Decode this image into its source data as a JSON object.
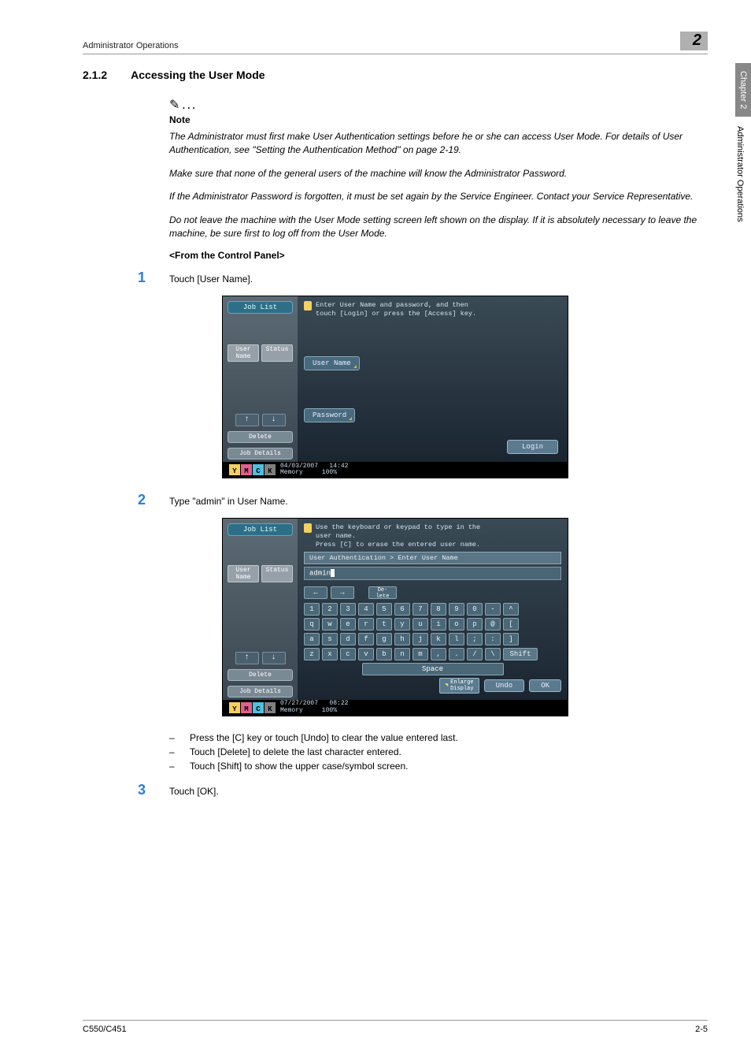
{
  "running_head": "Administrator Operations",
  "chapter_badge": "2",
  "side_tab": "Chapter 2",
  "side_text": "Administrator Operations",
  "section": {
    "num": "2.1.2",
    "title": "Accessing the User Mode"
  },
  "note": {
    "label": "Note",
    "p1": "The Administrator must first make User Authentication settings before he or she can access User Mode. For details of User Authentication, see \"Setting the Authentication Method\" on page 2-19.",
    "p2": "Make sure that none of the general users of the machine will know the Administrator Password.",
    "p3": "If the Administrator Password is forgotten, it must be set again by the Service Engineer. Contact your Service Representative.",
    "p4": "Do not leave the machine with the User Mode setting screen left shown on the display. If it is absolutely necessary to leave the machine, be sure first to log off from the User Mode."
  },
  "from_cp": "<From the Control Panel>",
  "steps": {
    "s1": "Touch [User Name].",
    "s2": "Type \"admin\" in User Name.",
    "s3": "Touch [OK]."
  },
  "bullets": {
    "b1": "Press the [C] key or touch [Undo] to clear the value entered last.",
    "b2": "Touch [Delete] to delete the last character entered.",
    "b3": "Touch [Shift] to show the upper case/symbol screen."
  },
  "panel1": {
    "job_list": "Job List",
    "user_name_tab": "User\nName",
    "status_tab": "Status",
    "up": "↑",
    "down": "↓",
    "delete": "Delete",
    "job_details": "Job Details",
    "guide1": "Enter User Name and password, and then",
    "guide2": "touch [Login] or press the [Access] key.",
    "user_name_btn": "User Name",
    "password_btn": "Password",
    "login": "Login",
    "date": "04/03/2007",
    "time": "14:42",
    "memory_lbl": "Memory",
    "memory_val": "100%"
  },
  "panel2": {
    "job_list": "Job List",
    "user_name_tab": "User\nName",
    "status_tab": "Status",
    "up": "↑",
    "down": "↓",
    "delete": "Delete",
    "job_details": "Job Details",
    "guide1": "Use the keyboard or keypad to type in the",
    "guide2": "user name.",
    "guide3": "Press [C] to erase the entered user name.",
    "breadcrumb": "User Authentication > Enter User Name",
    "input_value": "admin",
    "left_arrow": "←",
    "right_arrow": "→",
    "del_label": "De-\nlete",
    "row_num": [
      "1",
      "2",
      "3",
      "4",
      "5",
      "6",
      "7",
      "8",
      "9",
      "0",
      "-",
      "^"
    ],
    "row_q": [
      "q",
      "w",
      "e",
      "r",
      "t",
      "y",
      "u",
      "i",
      "o",
      "p",
      "@",
      "["
    ],
    "row_a": [
      "a",
      "s",
      "d",
      "f",
      "g",
      "h",
      "j",
      "k",
      "l",
      ";",
      ":",
      "]"
    ],
    "row_z": [
      "z",
      "x",
      "c",
      "v",
      "b",
      "n",
      "m",
      ",",
      ".",
      "/",
      "\\"
    ],
    "shift": "Shift",
    "space": "Space",
    "enlarge": "Enlarge\nDisplay",
    "undo": "Undo",
    "ok": "OK",
    "date": "07/27/2007",
    "time": "08:22",
    "memory_lbl": "Memory",
    "memory_val": "100%"
  },
  "cmyk": {
    "y": "Y",
    "m": "M",
    "c": "C",
    "k": "K",
    "yc": "#f5d060",
    "mc": "#e06090",
    "cc": "#50c0e0",
    "kc": "#808080"
  },
  "footer": {
    "left": "C550/C451",
    "right": "2-5"
  }
}
